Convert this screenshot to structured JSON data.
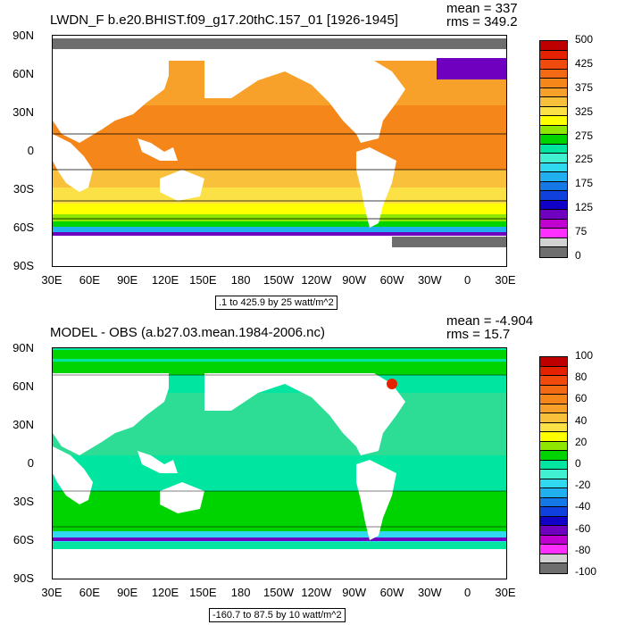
{
  "top": {
    "title": "LWDN_F b.e20.BHIST.f09_g17.20thC.157_01 [1926-1945]",
    "mean": "mean = 337",
    "rms": "rms = 349.2",
    "caption": ".1 to 425.9 by 25 watt/m^2",
    "colorbar_labels": [
      "500",
      "425",
      "375",
      "325",
      "275",
      "225",
      "175",
      "125",
      "75",
      "0"
    ],
    "colorbar_colors": [
      "#bf0000",
      "#e52200",
      "#f04a0d",
      "#f26a14",
      "#f5861a",
      "#f7a12b",
      "#f9c03b",
      "#fbe046",
      "#ffff00",
      "#8fe600",
      "#00d400",
      "#00e6a0",
      "#40f0d0",
      "#30d8f0",
      "#20b0f0",
      "#1478e6",
      "#1040dd",
      "#1000c8",
      "#7000c0",
      "#c000d0",
      "#ff30ff",
      "#d2d2d2",
      "#6e6e6e"
    ]
  },
  "bottom": {
    "title": "MODEL - OBS (a.b27.03.mean.1984-2006.nc)",
    "mean": "mean = -4.904",
    "rms": "rms = 15.7",
    "caption": "-160.7 to 87.5 by 10 watt/m^2",
    "colorbar_labels": [
      "100",
      "80",
      "60",
      "40",
      "20",
      "0",
      "-20",
      "-40",
      "-60",
      "-80",
      "-100"
    ],
    "colorbar_colors": [
      "#bf0000",
      "#e52200",
      "#f04a0d",
      "#f26a14",
      "#f5861a",
      "#f7a12b",
      "#f9c03b",
      "#fbe046",
      "#ffff00",
      "#8fe600",
      "#00d400",
      "#00e6a0",
      "#40f0d0",
      "#30d8f0",
      "#20b0f0",
      "#1478e6",
      "#1040dd",
      "#1000c8",
      "#7000c0",
      "#c000d0",
      "#ff30ff",
      "#d2d2d2",
      "#6e6e6e"
    ]
  },
  "lat_labels": [
    "90N",
    "60N",
    "30N",
    "0",
    "30S",
    "60S",
    "90S"
  ],
  "lon_labels": [
    "30E",
    "60E",
    "90E",
    "120E",
    "150E",
    "180",
    "150W",
    "120W",
    "90W",
    "60W",
    "30W",
    "0",
    "30E"
  ],
  "colors": {
    "land": "#ffffff",
    "ice": "#6e6e6e",
    "top_ocean_main": "#f5861a",
    "top_ocean_mid": "#f9c03b",
    "top_ocean_high": "#ffff00",
    "bottom_ocean_main": "#00e6a0",
    "bottom_ocean_green": "#00d400"
  }
}
